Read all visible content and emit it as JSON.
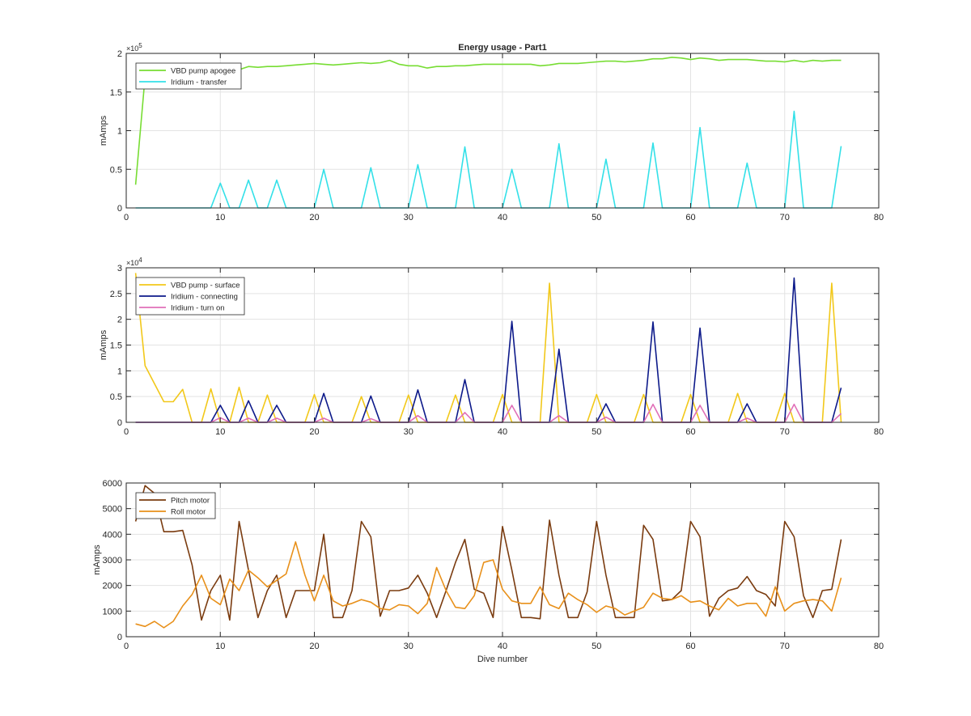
{
  "figure": {
    "title": "Energy usage - Part1",
    "background": "#ffffff"
  },
  "chart_data": [
    {
      "type": "line",
      "title": "Energy usage - Part1",
      "xlabel": "",
      "ylabel": "mAmps",
      "xlim": [
        0,
        80
      ],
      "ylim": [
        0,
        200000
      ],
      "xticks": [
        0,
        10,
        20,
        30,
        40,
        50,
        60,
        70,
        80
      ],
      "yticks": [
        0,
        0.5,
        1,
        1.5,
        2
      ],
      "ytick_labels": [
        "0",
        "0.5",
        "1",
        "1.5",
        "2"
      ],
      "y_exponent_base": "×10",
      "y_exponent_power": "5",
      "y_tick_scale": 100000,
      "grid": true,
      "legend_position": "top-left",
      "series": [
        {
          "name": "VBD pump apogee",
          "color": "#77dd33",
          "x": [
            1,
            2,
            3,
            4,
            5,
            6,
            7,
            8,
            9,
            10,
            11,
            12,
            13,
            14,
            15,
            16,
            17,
            18,
            19,
            20,
            21,
            22,
            23,
            24,
            25,
            26,
            27,
            28,
            29,
            30,
            31,
            32,
            33,
            34,
            35,
            36,
            37,
            38,
            39,
            40,
            41,
            42,
            43,
            44,
            45,
            46,
            47,
            48,
            49,
            50,
            51,
            52,
            53,
            54,
            55,
            56,
            57,
            58,
            59,
            60,
            61,
            62,
            63,
            64,
            65,
            66,
            67,
            68,
            69,
            70,
            71,
            72,
            73,
            74,
            75,
            76
          ],
          "values": [
            30000,
            170000,
            175000,
            176000,
            176000,
            177000,
            177000,
            178000,
            178000,
            179000,
            179000,
            179000,
            183000,
            182000,
            183000,
            183000,
            184000,
            185000,
            186000,
            187000,
            186000,
            185000,
            186000,
            187000,
            188000,
            187000,
            188000,
            191000,
            186000,
            184000,
            184000,
            181000,
            183000,
            183000,
            184000,
            184000,
            185000,
            186000,
            186000,
            186000,
            186000,
            186000,
            186000,
            184000,
            185000,
            187000,
            187000,
            187000,
            188000,
            189000,
            190000,
            190000,
            189000,
            190000,
            191000,
            193000,
            193000,
            195000,
            194000,
            192000,
            194000,
            193000,
            191000,
            192000,
            192000,
            192000,
            191000,
            190000,
            190000,
            189000,
            191000,
            189000,
            191000,
            190000,
            191000,
            191000
          ]
        },
        {
          "name": "Iridium - transfer",
          "color": "#33e0e8",
          "x": [
            1,
            9,
            10,
            11,
            12,
            13,
            14,
            15,
            16,
            17,
            20,
            21,
            22,
            25,
            26,
            27,
            30,
            31,
            32,
            35,
            36,
            37,
            40,
            41,
            42,
            45,
            46,
            47,
            50,
            51,
            52,
            55,
            56,
            57,
            60,
            61,
            62,
            65,
            66,
            67,
            70,
            71,
            72,
            75,
            76
          ],
          "values": [
            0,
            0,
            32000,
            0,
            0,
            36000,
            0,
            0,
            36000,
            0,
            0,
            50000,
            0,
            0,
            52000,
            0,
            0,
            56000,
            0,
            0,
            79000,
            0,
            0,
            50000,
            0,
            0,
            83000,
            0,
            0,
            63000,
            0,
            0,
            84000,
            0,
            0,
            104000,
            0,
            0,
            58000,
            0,
            0,
            125000,
            0,
            0,
            80000
          ]
        }
      ]
    },
    {
      "type": "line",
      "title": "",
      "xlabel": "",
      "ylabel": "mAmps",
      "xlim": [
        0,
        80
      ],
      "ylim": [
        0,
        30000
      ],
      "xticks": [
        0,
        10,
        20,
        30,
        40,
        50,
        60,
        70,
        80
      ],
      "yticks": [
        0,
        0.5,
        1,
        1.5,
        2,
        2.5,
        3
      ],
      "ytick_labels": [
        "0",
        "0.5",
        "1",
        "1.5",
        "2",
        "2.5",
        "3"
      ],
      "y_exponent_base": "×10",
      "y_exponent_power": "4",
      "y_tick_scale": 10000,
      "grid": true,
      "legend_position": "top-left",
      "series": [
        {
          "name": "VBD pump - surface",
          "color": "#f2c81a",
          "x": [
            1,
            2,
            3,
            4,
            5,
            6,
            7,
            8,
            9,
            10,
            11,
            12,
            13,
            14,
            15,
            16,
            19,
            20,
            21,
            24,
            25,
            26,
            29,
            30,
            31,
            34,
            35,
            36,
            39,
            40,
            41,
            44,
            45,
            46,
            49,
            50,
            51,
            54,
            55,
            56,
            59,
            60,
            61,
            64,
            65,
            66,
            69,
            70,
            71,
            74,
            75,
            76
          ],
          "values": [
            29000,
            11000,
            7500,
            4000,
            4000,
            6400,
            0,
            0,
            6500,
            0,
            0,
            6800,
            0,
            0,
            5300,
            0,
            0,
            5400,
            0,
            0,
            5000,
            0,
            0,
            5300,
            0,
            0,
            5300,
            0,
            0,
            5400,
            0,
            0,
            27000,
            0,
            0,
            5400,
            0,
            0,
            5400,
            0,
            0,
            5400,
            0,
            0,
            5600,
            0,
            0,
            5600,
            0,
            0,
            27000,
            0
          ]
        },
        {
          "name": "Iridium - connecting",
          "color": "#0d1a8a",
          "x": [
            1,
            9,
            10,
            11,
            12,
            13,
            14,
            15,
            16,
            17,
            20,
            21,
            22,
            25,
            26,
            27,
            30,
            31,
            32,
            35,
            36,
            37,
            40,
            41,
            42,
            45,
            46,
            47,
            50,
            51,
            52,
            55,
            56,
            57,
            60,
            61,
            62,
            65,
            66,
            67,
            70,
            71,
            72,
            75,
            76
          ],
          "values": [
            0,
            0,
            3300,
            0,
            0,
            4200,
            0,
            0,
            3300,
            0,
            0,
            5600,
            0,
            0,
            5100,
            0,
            0,
            6300,
            0,
            0,
            8300,
            0,
            0,
            19600,
            0,
            0,
            14200,
            0,
            0,
            3600,
            0,
            0,
            19500,
            0,
            0,
            18300,
            0,
            0,
            3600,
            0,
            0,
            28000,
            0,
            0,
            6700
          ]
        },
        {
          "name": "Iridium - turn on",
          "color": "#e070b8",
          "x": [
            1,
            9,
            10,
            11,
            12,
            13,
            14,
            15,
            16,
            17,
            20,
            21,
            22,
            25,
            26,
            27,
            30,
            31,
            32,
            35,
            36,
            37,
            40,
            41,
            42,
            45,
            46,
            47,
            50,
            51,
            52,
            55,
            56,
            57,
            60,
            61,
            62,
            65,
            66,
            67,
            70,
            71,
            72,
            75,
            76
          ],
          "values": [
            0,
            0,
            900,
            0,
            0,
            800,
            0,
            0,
            800,
            0,
            0,
            800,
            0,
            0,
            700,
            0,
            0,
            1300,
            0,
            0,
            1900,
            0,
            0,
            3300,
            0,
            0,
            1300,
            0,
            0,
            1000,
            0,
            0,
            3500,
            0,
            0,
            3300,
            0,
            0,
            800,
            0,
            0,
            3500,
            0,
            0,
            1700
          ]
        }
      ]
    },
    {
      "type": "line",
      "title": "",
      "xlabel": "Dive number",
      "ylabel": "mAmps",
      "xlim": [
        0,
        80
      ],
      "ylim": [
        0,
        6000
      ],
      "xticks": [
        0,
        10,
        20,
        30,
        40,
        50,
        60,
        70,
        80
      ],
      "yticks": [
        0,
        1000,
        2000,
        3000,
        4000,
        5000,
        6000
      ],
      "ytick_labels": [
        "0",
        "1000",
        "2000",
        "3000",
        "4000",
        "5000",
        "6000"
      ],
      "y_exponent_base": "",
      "y_exponent_power": "",
      "y_tick_scale": 1,
      "grid": true,
      "legend_position": "top-left",
      "series": [
        {
          "name": "Pitch motor",
          "color": "#7a3b0f",
          "x": [
            1,
            2,
            3,
            4,
            5,
            6,
            7,
            8,
            9,
            10,
            11,
            12,
            13,
            14,
            15,
            16,
            17,
            18,
            19,
            20,
            21,
            22,
            23,
            24,
            25,
            26,
            27,
            28,
            29,
            30,
            31,
            32,
            33,
            34,
            35,
            36,
            37,
            38,
            39,
            40,
            41,
            42,
            43,
            44,
            45,
            46,
            47,
            48,
            49,
            50,
            51,
            52,
            53,
            54,
            55,
            56,
            57,
            58,
            59,
            60,
            61,
            62,
            63,
            64,
            65,
            66,
            67,
            68,
            69,
            70,
            71,
            72,
            73,
            74,
            75,
            76
          ],
          "values": [
            4500,
            5900,
            5600,
            4100,
            4100,
            4150,
            2800,
            650,
            1800,
            2400,
            650,
            4500,
            2600,
            750,
            1800,
            2400,
            750,
            1800,
            1800,
            1800,
            4000,
            750,
            750,
            1800,
            4500,
            3900,
            800,
            1800,
            1800,
            1900,
            2400,
            1700,
            750,
            1800,
            2900,
            3800,
            1850,
            1700,
            750,
            4300,
            2600,
            750,
            750,
            700,
            4550,
            2400,
            750,
            750,
            1750,
            4500,
            2400,
            750,
            750,
            750,
            4350,
            3800,
            1400,
            1450,
            1800,
            4500,
            3900,
            800,
            1500,
            1800,
            1900,
            2350,
            1800,
            1650,
            1200,
            4500,
            3900,
            1600,
            750,
            1800,
            1850,
            3800
          ]
        },
        {
          "name": "Roll motor",
          "color": "#e8901a",
          "x": [
            1,
            2,
            3,
            4,
            5,
            6,
            7,
            8,
            9,
            10,
            11,
            12,
            13,
            14,
            15,
            16,
            17,
            18,
            19,
            20,
            21,
            22,
            23,
            24,
            25,
            26,
            27,
            28,
            29,
            30,
            31,
            32,
            33,
            34,
            35,
            36,
            37,
            38,
            39,
            40,
            41,
            42,
            43,
            44,
            45,
            46,
            47,
            48,
            49,
            50,
            51,
            52,
            53,
            54,
            55,
            56,
            57,
            58,
            59,
            60,
            61,
            62,
            63,
            64,
            65,
            66,
            67,
            68,
            69,
            70,
            71,
            72,
            73,
            74,
            75,
            76
          ],
          "values": [
            500,
            400,
            600,
            350,
            600,
            1200,
            1650,
            2400,
            1500,
            1250,
            2250,
            1800,
            2600,
            2300,
            1950,
            2200,
            2450,
            3700,
            2400,
            1400,
            2400,
            1400,
            1200,
            1300,
            1450,
            1350,
            1100,
            1050,
            1250,
            1200,
            900,
            1300,
            2700,
            1800,
            1150,
            1100,
            1600,
            2900,
            3000,
            1850,
            1400,
            1300,
            1300,
            1950,
            1250,
            1100,
            1700,
            1450,
            1250,
            950,
            1200,
            1100,
            850,
            1000,
            1150,
            1700,
            1500,
            1450,
            1600,
            1350,
            1400,
            1200,
            1050,
            1500,
            1200,
            1300,
            1300,
            800,
            1950,
            1000,
            1300,
            1400,
            1450,
            1400,
            1000,
            2300
          ]
        }
      ]
    }
  ]
}
